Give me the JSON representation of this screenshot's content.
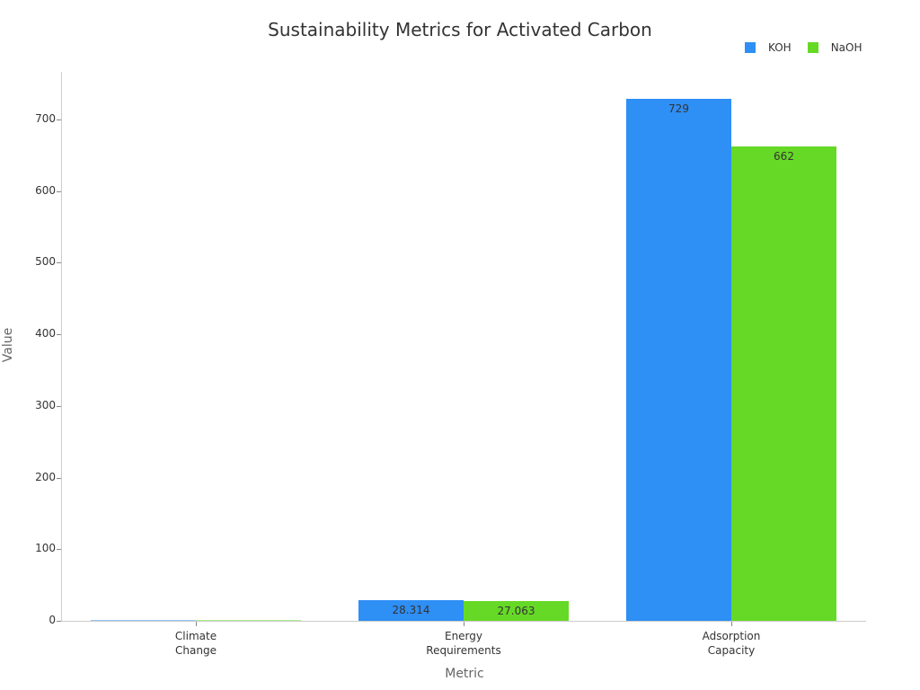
{
  "chart_data": {
    "type": "bar",
    "title": "Sustainability Metrics for Activated Carbon",
    "xlabel": "Metric",
    "ylabel": "Value",
    "categories": [
      "Climate\nChange",
      "Energy\nRequirements",
      "Adsorption\nCapacity"
    ],
    "category_lines": [
      [
        "Climate",
        "Change"
      ],
      [
        "Energy",
        "Requirements"
      ],
      [
        "Adsorption",
        "Capacity"
      ]
    ],
    "series": [
      {
        "name": "KOH",
        "color": "#2e8ff5",
        "values": [
          1.2,
          28.314,
          729
        ]
      },
      {
        "name": "NaOH",
        "color": "#66d926",
        "values": [
          1.0,
          27.063,
          662
        ]
      }
    ],
    "value_labels": [
      [
        "",
        "28.314",
        "729"
      ],
      [
        "",
        "27.063",
        "662"
      ]
    ],
    "yticks": [
      "0",
      "100",
      "200",
      "300",
      "400",
      "500",
      "600",
      "700"
    ],
    "ylim": [
      0,
      767
    ],
    "grid": false,
    "legend_position": "top-right"
  }
}
